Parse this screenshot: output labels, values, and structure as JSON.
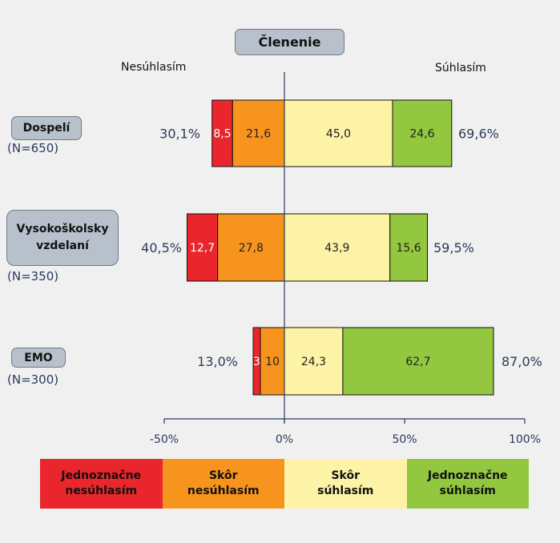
{
  "chart_data": {
    "type": "bar",
    "title": "Členenie",
    "left_label": "Nesúhlasím",
    "right_label": "Súhlasím",
    "xlim": [
      -50,
      100
    ],
    "x_ticks": [
      "-50%",
      "0%",
      "50%",
      "100%"
    ],
    "categories": [
      {
        "label": "Dospelí",
        "n": "(N=650)",
        "neg_total": "30,1%",
        "pos_total": "69,6%"
      },
      {
        "label": "Vysokoškolsky\nvzdelaní",
        "n": "(N=350)",
        "neg_total": "40,5%",
        "pos_total": "59,5%"
      },
      {
        "label": "EMO",
        "n": "(N=300)",
        "neg_total": "13,0%",
        "pos_total": "87,0%"
      }
    ],
    "series": [
      {
        "name": "Jednoznačne\nnesúhlasím",
        "color": "#e8262b",
        "side": "negative",
        "values": [
          8.5,
          12.7,
          3
        ],
        "labels": [
          "8,5",
          "12,7",
          "3"
        ],
        "text_color": "#ffffff"
      },
      {
        "name": "Skôr\nnesúhlasím",
        "color": "#f7941d",
        "side": "negative",
        "values": [
          21.6,
          27.8,
          10
        ],
        "labels": [
          "21,6",
          "27,8",
          "10"
        ],
        "text_color": "#222222"
      },
      {
        "name": "Skôr\nsúhlasím",
        "color": "#fcf3a6",
        "side": "positive",
        "values": [
          45.0,
          43.9,
          24.3
        ],
        "labels": [
          "45,0",
          "43,9",
          "24,3"
        ],
        "text_color": "#222222"
      },
      {
        "name": "Jednoznačne\nsúhlasím",
        "color": "#93c73f",
        "side": "positive",
        "values": [
          24.6,
          15.6,
          62.7
        ],
        "labels": [
          "24,6",
          "15,6",
          "62,7"
        ],
        "text_color": "#222222"
      }
    ]
  }
}
